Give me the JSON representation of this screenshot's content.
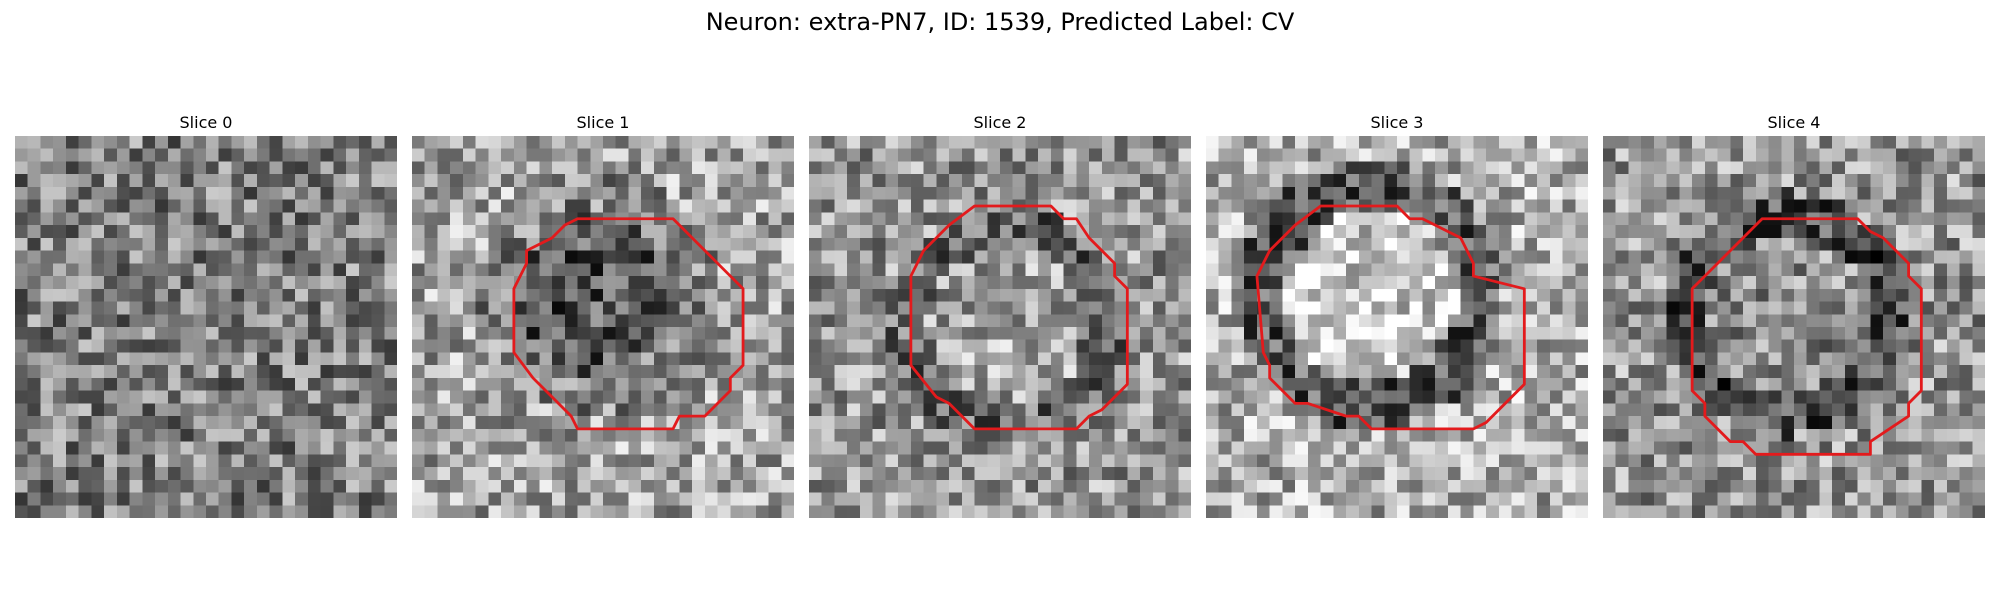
{
  "figure": {
    "title": "Neuron: extra-PN7, ID: 1539, Predicted Label: CV"
  },
  "colors": {
    "contour": "#e31a1c",
    "background": "#ffffff"
  },
  "panels": [
    {
      "title": "Slice 0",
      "contour": null
    },
    {
      "title": "Slice 1",
      "contour": "octagon"
    },
    {
      "title": "Slice 2",
      "contour": "octagon"
    },
    {
      "title": "Slice 3",
      "contour": "octagon"
    },
    {
      "title": "Slice 4",
      "contour": "octagon"
    }
  ]
}
